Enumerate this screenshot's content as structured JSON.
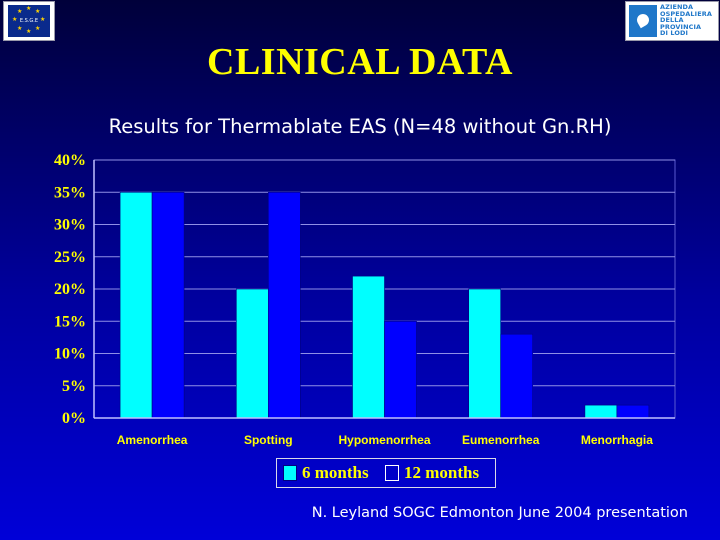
{
  "header": {
    "title": "CLINICAL DATA",
    "subtitle": "Results for Thermablate EAS (N=48 without Gn.RH)",
    "left_logo": {
      "icon": "eu-flag-icon",
      "text": "E.S.G.E"
    },
    "right_logo": {
      "icon": "dove-icon",
      "lines": [
        "AZIENDA",
        "OSPEDALIERA",
        "DELLA",
        "PROVINCIA",
        "DI LODI"
      ]
    }
  },
  "chart_data": {
    "type": "bar",
    "categories": [
      "Amenorrhea",
      "Spotting",
      "Hypomenorrhea",
      "Eumenorrhea",
      "Menorrhagia"
    ],
    "series": [
      {
        "name": "6 months",
        "values": [
          35,
          20,
          22,
          20,
          2
        ],
        "color": "#00ffff"
      },
      {
        "name": "12 months",
        "values": [
          35,
          35,
          15,
          13,
          2
        ],
        "color": "#0000ff"
      }
    ],
    "ylim": [
      0,
      40
    ],
    "yticks": [
      "0%",
      "5%",
      "10%",
      "15%",
      "20%",
      "25%",
      "30%",
      "35%",
      "40%"
    ],
    "grid": true,
    "legend_position": "bottom-center",
    "tick_color": "#ffff00",
    "category_label_color": "#ffff00"
  },
  "footer": {
    "credit": "N. Leyland SOGC Edmonton June 2004 presentation"
  }
}
